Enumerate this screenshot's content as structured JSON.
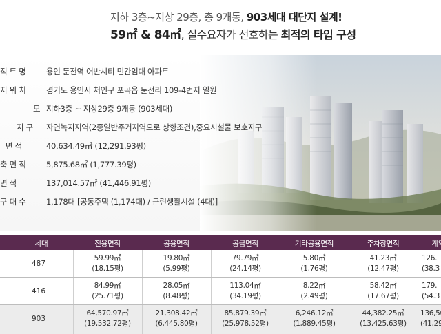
{
  "header": {
    "line1_pre": "지하 3층~지상 29층, 총 9개동, ",
    "line1_bold": "903세대 대단지 설계!",
    "line2_size": "59㎡ & 84㎡",
    "line2_mid": ", 실수요자가 선호하는 ",
    "line2_bold": "최적의 타입 구성"
  },
  "info_rows": [
    {
      "label": "적 트 명",
      "value": "용인 둔전역 어반시티 민간임대 아파트"
    },
    {
      "label": "지 위 치",
      "value": "경기도 용인시 처인구 포곡읍 둔전리 109-4번지 일원"
    },
    {
      "label": "모",
      "value": "지하3층 ~ 지상29층  9개동 (903세대)"
    },
    {
      "label": "지 구",
      "value": "자연녹지지역(2종일반주거지역으로 상향조건),중요시설물 보호지구"
    },
    {
      "label": "면 적",
      "value": "40,634.49㎡ (12,291.93평)"
    },
    {
      "label": "축 면 적",
      "value": "5,875.68㎡ (1,777.39평)"
    },
    {
      "label": "면     적",
      "value": "137,014.57㎡ (41,446.91평)"
    },
    {
      "label": "구 대 수",
      "value": "1,178대 [공동주택 (1,174대) / 근린생활시설 (4대)]"
    }
  ],
  "table": {
    "headers": [
      "세대",
      "전용면적",
      "공용면적",
      "공급면적",
      "기타공용면적",
      "주차장면적",
      "계약"
    ],
    "rows": [
      {
        "units": "487",
        "cells": [
          [
            "59.99㎡",
            "(18.15평)"
          ],
          [
            "19.80㎡",
            "(5.99평)"
          ],
          [
            "79.79㎡",
            "(24.14평)"
          ],
          [
            "5.80㎡",
            "(1.76평)"
          ],
          [
            "41.23㎡",
            "(12.47평)"
          ],
          [
            "126.",
            "(38.3"
          ]
        ]
      },
      {
        "units": "416",
        "cells": [
          [
            "84.99㎡",
            "(25.71평)"
          ],
          [
            "28.05㎡",
            "(8.48평)"
          ],
          [
            "113.04㎡",
            "(34.19평)"
          ],
          [
            "8.22㎡",
            "(2.49평)"
          ],
          [
            "58.42㎡",
            "(17.67평)"
          ],
          [
            "179.",
            "(54.3"
          ]
        ]
      },
      {
        "units": "903",
        "cells": [
          [
            "64,570.97㎡",
            "(19,532.72평)"
          ],
          [
            "21,308.42㎡",
            "(6,445.80평)"
          ],
          [
            "85,879.39㎡",
            "(25,978.52평)"
          ],
          [
            "6,246.12㎡",
            "(1,889.45평)"
          ],
          [
            "44,382.25㎡",
            "(13,425.63평)"
          ],
          [
            "136,50",
            "(41,29"
          ]
        ]
      }
    ]
  },
  "colors": {
    "table_header": "#5a2a4f",
    "total_row": "#ececec"
  }
}
